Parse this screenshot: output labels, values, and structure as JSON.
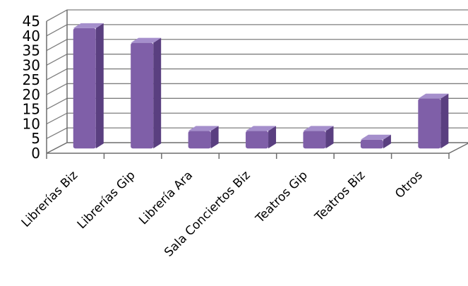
{
  "chart_data": {
    "type": "bar",
    "style": "3d-cylinder",
    "categories": [
      "Librerías Biz",
      "Librerías Gip",
      "Librería Ara",
      "Sala Conciertos Biz",
      "Teatros Gip",
      "Teatros Biz",
      "Otros"
    ],
    "values": [
      41,
      36,
      6,
      6,
      6,
      3,
      17
    ],
    "ylim": [
      0,
      45
    ],
    "yticks": [
      "0",
      "5",
      "10",
      "15",
      "20",
      "25",
      "30",
      "35",
      "40",
      "45"
    ],
    "grid": true,
    "legend": "none",
    "colors": {
      "bar_front": "#7f5fa8",
      "bar_side": "#5a3f80",
      "bar_top": "#a58fcc",
      "grid": "#7f7f7f"
    }
  }
}
